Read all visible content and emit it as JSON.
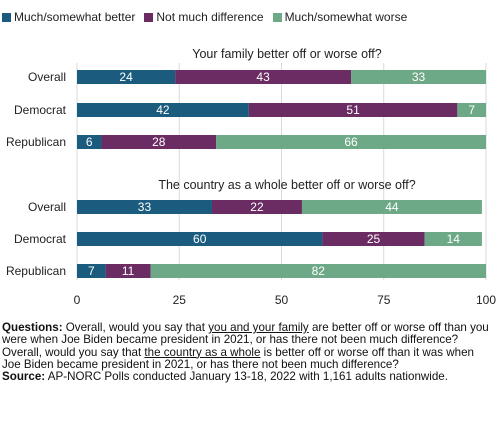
{
  "chart_data": {
    "type": "bar",
    "stacked": true,
    "orientation": "horizontal",
    "legend": {
      "placement": "top-left",
      "entries": [
        {
          "label": "Much/somewhat better",
          "color": "#1b5c7e"
        },
        {
          "label": "Not much difference",
          "color": "#6b2b63"
        },
        {
          "label": "Much/somewhat worse",
          "color": "#6ea987"
        }
      ]
    },
    "xlim": [
      0,
      100
    ],
    "xticks": [
      "0",
      "25",
      "50",
      "75",
      "100"
    ],
    "grid": true,
    "panels": [
      {
        "title": "Your family better off or worse off?",
        "categories": [
          "Overall",
          "Democrat",
          "Republican"
        ],
        "series": [
          {
            "name": "Much/somewhat better",
            "values": [
              24,
              42,
              6
            ]
          },
          {
            "name": "Not much difference",
            "values": [
              43,
              51,
              28
            ]
          },
          {
            "name": "Much/somewhat worse",
            "values": [
              33,
              7,
              66
            ]
          }
        ]
      },
      {
        "title": "The country as a whole better off or worse off?",
        "categories": [
          "Overall",
          "Democrat",
          "Republican"
        ],
        "series": [
          {
            "name": "Much/somewhat better",
            "values": [
              33,
              60,
              7
            ]
          },
          {
            "name": "Not much difference",
            "values": [
              22,
              25,
              11
            ]
          },
          {
            "name": "Much/somewhat worse",
            "values": [
              44,
              14,
              82
            ]
          }
        ]
      }
    ]
  },
  "notes": {
    "questions_label": "Questions:",
    "q1_pre": " Overall, would you say that ",
    "q1_underlined": "you and your family",
    "q1_post": " are better off or worse off than you were when Joe Biden became president in 2021, or has there not been much difference?",
    "q2_pre": "Overall, would you say that ",
    "q2_underlined": "the country as a whole",
    "q2_post": "  is better off or worse off than it was when Joe Biden became president in 2021, or has there not been much difference?",
    "source_label": "Source:",
    "source_text": " AP-NORC Polls conducted January 13-18, 2022 with 1,161 adults nationwide."
  }
}
